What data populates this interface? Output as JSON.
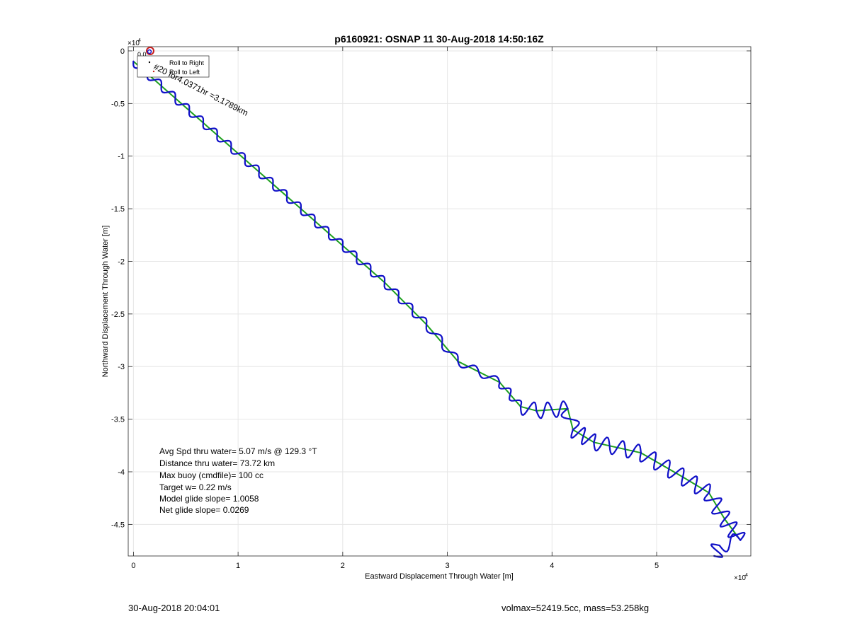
{
  "chart_data": {
    "type": "line",
    "title": "p6160921: OSNAP 11 30-Aug-2018 14:50:16Z",
    "xlabel": "Eastward Displacement Through Water [m]",
    "ylabel": "Northward Displacement Through Water [m]",
    "xlim": [
      -500,
      59000
    ],
    "ylim": [
      -48000,
      400
    ],
    "x_multiplier_label": "×10",
    "x_multiplier_exp": "4",
    "y_multiplier_label": "×10",
    "y_multiplier_exp": "4",
    "xticks": [
      0,
      10000,
      20000,
      30000,
      40000,
      50000
    ],
    "xtick_labels": [
      "0",
      "1",
      "2",
      "3",
      "4",
      "5"
    ],
    "yticks": [
      0,
      -5000,
      -10000,
      -15000,
      -20000,
      -25000,
      -30000,
      -35000,
      -40000,
      -45000
    ],
    "ytick_labels": [
      "0",
      "-0.5",
      "-1",
      "-1.5",
      "-2",
      "-2.5",
      "-3",
      "-3.5",
      "-4",
      "-4.5"
    ],
    "grid": true,
    "legend": {
      "placement": "top-left",
      "entries": [
        "Roll to Right",
        "Roll to Left"
      ]
    },
    "colors": {
      "wavy_track": "#1010c8",
      "net_track": "#1ea01e",
      "marker": "#c81e1e",
      "grid": "#e6e6e6"
    },
    "annotation": "#20 for4.0371hr =3.1789km",
    "start_labels": [
      "0.0",
      "#9"
    ],
    "series": [
      {
        "name": "",
        "style": "green-line",
        "x": [
          0,
          4000,
          8000,
          12000,
          16000,
          20000,
          24000,
          28000,
          31000,
          35000,
          37000,
          38500,
          41500,
          42000,
          44000,
          48500,
          52500,
          55000,
          56500,
          58000
        ],
        "y": [
          -1000,
          -4500,
          -8000,
          -11500,
          -15000,
          -18500,
          -22000,
          -26000,
          -29500,
          -31500,
          -33800,
          -34200,
          -34000,
          -36000,
          -37200,
          -38200,
          -40500,
          -42000,
          -44500,
          -46500
        ]
      },
      {
        "name": "",
        "style": "blue-wavy",
        "x": [
          0,
          4000,
          8000,
          12000,
          16000,
          20000,
          24000,
          28000,
          31000,
          35000,
          37000,
          38500,
          41500,
          42000,
          44000,
          48500,
          52500,
          55000,
          56500,
          58000,
          56000,
          55500
        ],
        "y": [
          -1000,
          -4500,
          -8000,
          -11500,
          -15000,
          -18500,
          -22000,
          -26000,
          -29500,
          -31500,
          -33800,
          -34200,
          -34000,
          -36000,
          -37200,
          -38200,
          -40500,
          -42000,
          -44500,
          -46500,
          -47000,
          -48000
        ]
      }
    ],
    "stats": [
      "Avg Spd thru water=  5.07 m/s @ 129.3 °T",
      "Distance thru water= 73.72 km",
      "Max buoy (cmdfile)= 100 cc",
      "Target w= 0.22 m/s",
      "Model glide slope= 1.0058",
      "Net glide slope= 0.0269"
    ]
  },
  "footer": {
    "timestamp": "30-Aug-2018 20:04:01",
    "volume_mass": "volmax=52419.5cc, mass=53.258kg"
  }
}
